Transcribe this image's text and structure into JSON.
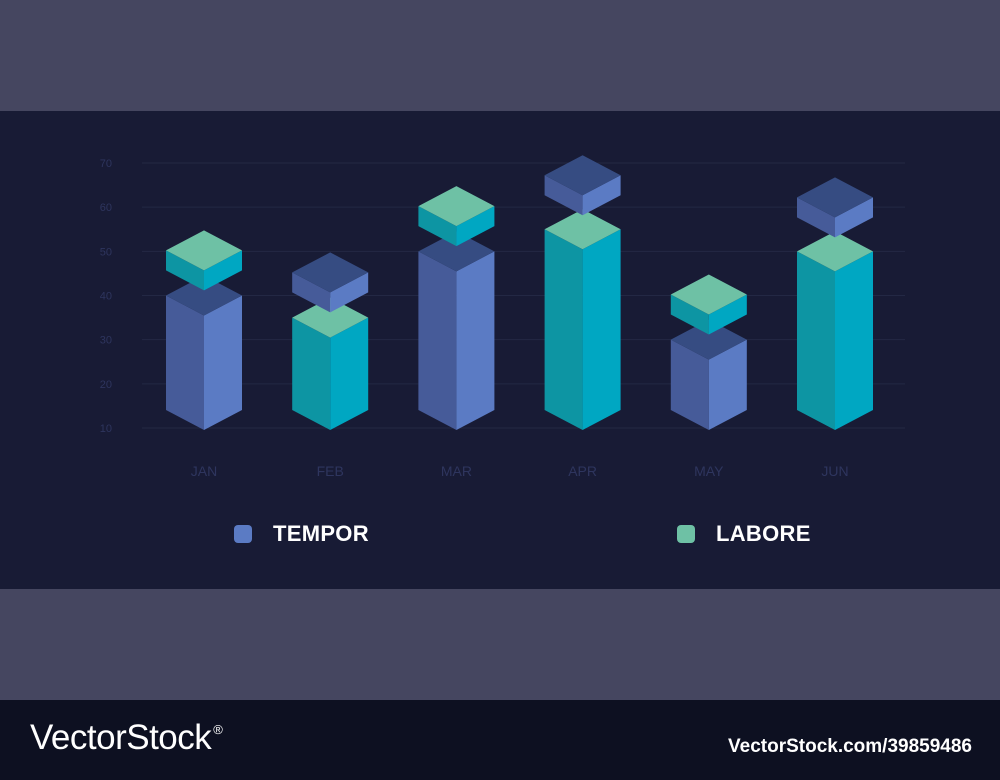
{
  "chart_data": {
    "type": "bar",
    "categories": [
      "JAN",
      "FEB",
      "MAR",
      "APR",
      "MAY",
      "JUN"
    ],
    "series": [
      {
        "name": "TEMPOR",
        "values": [
          40,
          45,
          50,
          67,
          30,
          62
        ]
      },
      {
        "name": "LABORE",
        "values": [
          50,
          35,
          60,
          55,
          40,
          50
        ]
      }
    ],
    "ylim": [
      10,
      70
    ],
    "yticks": [
      10,
      20,
      30,
      40,
      50,
      60,
      70
    ],
    "grid": true,
    "legend_position": "bottom"
  },
  "legend": [
    {
      "label": "TEMPOR"
    },
    {
      "label": "LABORE"
    }
  ],
  "colors": {
    "tempor_front": "#5b7bc4",
    "tempor_side": "#465b99",
    "tempor_top": "#364c82",
    "labore_front": "#00a7c2",
    "labore_side": "#0d95a3",
    "labore_top": "#6ec1a5",
    "axis_text": "#2e355e",
    "grid": "#232844"
  },
  "footer": {
    "brand": "VectorStock",
    "reg_mark": "®",
    "stock_id": "VectorStock.com/39859486"
  }
}
